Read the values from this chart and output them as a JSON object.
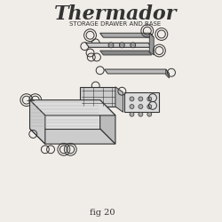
{
  "title": "Thermador",
  "subtitle": "STORAGE DRAWER AND BASE",
  "fig_label": "fig 20",
  "bg_color": "#f0ede8",
  "line_color": "#333333",
  "part_color": "#555555",
  "title_fontsize": 16,
  "subtitle_fontsize": 5,
  "fig_label_fontsize": 7
}
